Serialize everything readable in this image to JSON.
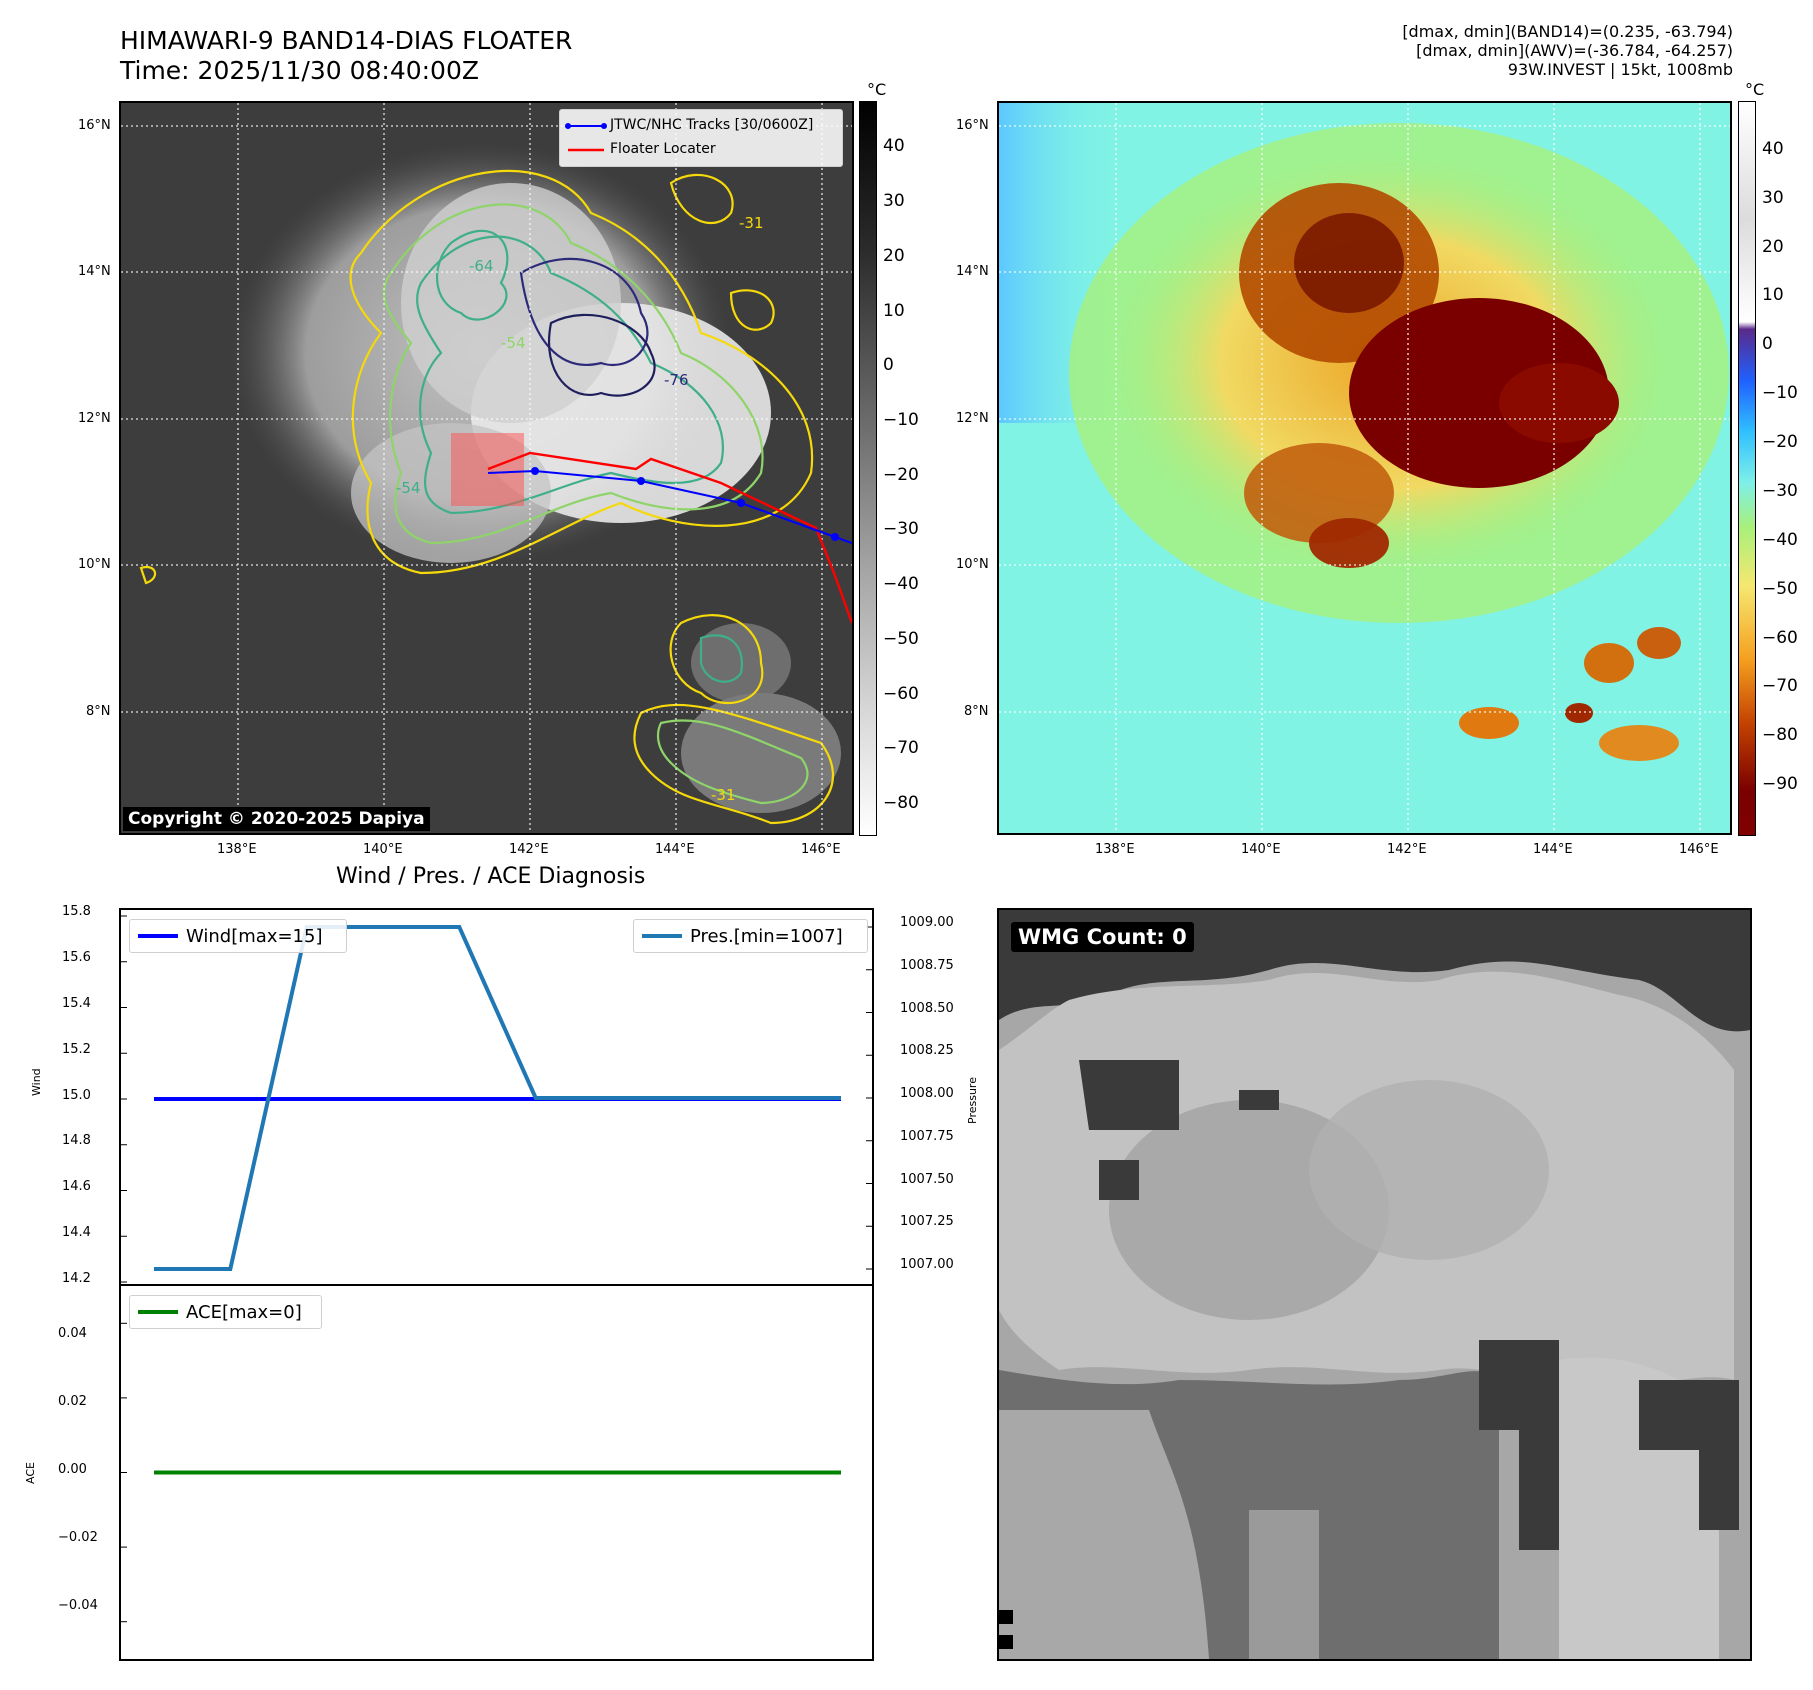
{
  "header": {
    "title_line1": "HIMAWARI-9 BAND14-DIAS FLOATER",
    "title_line2": "Time: 2025/11/30 08:40:00Z",
    "info_line1": "[dmax, dmin](BAND14)=(0.235, -63.794)",
    "info_line2": "[dmax, dmin](AWV)=(-36.784, -64.257)",
    "info_line3": "93W.INVEST | 15kt, 1008mb"
  },
  "ir_map": {
    "lat_labels": [
      "16°N",
      "14°N",
      "12°N",
      "10°N",
      "8°N"
    ],
    "lon_labels": [
      "138°E",
      "140°E",
      "142°E",
      "144°E",
      "146°E"
    ],
    "legend": {
      "track": "JTWC/NHC Tracks [30/0600Z]",
      "locater": "Floater Locater"
    },
    "contour_labels": [
      "-31",
      "-54",
      "-64",
      "-76"
    ],
    "copyright": "Copyright © 2020-2025 Dapiya",
    "colorbar": {
      "unit": "°C",
      "ticks": [
        "40",
        "30",
        "20",
        "10",
        "0",
        "−10",
        "−20",
        "−30",
        "−40",
        "−50",
        "−60",
        "−70",
        "−80"
      ]
    },
    "colors": {
      "track": "#0000ff",
      "locater": "#ff0000",
      "contour_warm": "#f5d90a",
      "contour_mid": "#3fae8a",
      "contour_cold": "#2e2a7a"
    }
  },
  "color_map": {
    "lat_labels": [
      "16°N",
      "14°N",
      "12°N",
      "10°N",
      "8°N"
    ],
    "lon_labels": [
      "138°E",
      "140°E",
      "142°E",
      "144°E",
      "146°E"
    ],
    "colorbar": {
      "unit": "°C",
      "ticks": [
        "40",
        "30",
        "20",
        "10",
        "0",
        "−10",
        "−20",
        "−30",
        "−40",
        "−50",
        "−60",
        "−70",
        "−80",
        "−90"
      ]
    },
    "colors": {
      "background": "#7ff0e8",
      "warm_cloud": "#f5c542",
      "cold_core": "#7a0000"
    }
  },
  "diagnosis": {
    "title": "Wind / Pres. / ACE Diagnosis",
    "wind_axis_label": "Wind",
    "pressure_axis_label": "Pressure",
    "ace_axis_label": "ACE",
    "wind_ticks": [
      "15.8",
      "15.6",
      "15.4",
      "15.2",
      "15.0",
      "14.8",
      "14.6",
      "14.4",
      "14.2"
    ],
    "pressure_ticks": [
      "1009.00",
      "1008.75",
      "1008.50",
      "1008.25",
      "1008.00",
      "1007.75",
      "1007.50",
      "1007.25",
      "1007.00"
    ],
    "ace_ticks": [
      "0.04",
      "0.02",
      "0.00",
      "−0.02",
      "−0.04"
    ],
    "legend_wind": "Wind[max=15]",
    "legend_pres": "Pres.[min=1007]",
    "legend_ace": "ACE[max=0]",
    "colors": {
      "wind": "#0000ff",
      "pressure": "#1f77b4",
      "ace": "#008000"
    }
  },
  "chart_data": [
    {
      "type": "line",
      "title": "Wind / Pres. / ACE Diagnosis",
      "x": [
        0,
        1,
        2,
        3,
        4,
        5,
        6,
        7,
        8,
        9
      ],
      "series": [
        {
          "name": "Wind[max=15]",
          "axis": "left",
          "values": [
            15,
            15,
            15,
            15,
            15,
            15,
            15,
            15,
            15,
            15
          ]
        },
        {
          "name": "Pres.[min=1007]",
          "axis": "right",
          "values": [
            1007,
            1007,
            1009,
            1009,
            1009,
            1008,
            1008,
            1008,
            1008,
            1008
          ]
        }
      ],
      "ylabel": "Wind",
      "ylim": [
        14.2,
        15.8
      ],
      "y2label": "Pressure",
      "y2lim": [
        1007,
        1009
      ]
    },
    {
      "type": "line",
      "x": [
        0,
        1,
        2,
        3,
        4,
        5,
        6,
        7,
        8,
        9
      ],
      "series": [
        {
          "name": "ACE[max=0]",
          "values": [
            0,
            0,
            0,
            0,
            0,
            0,
            0,
            0,
            0,
            0
          ]
        }
      ],
      "ylabel": "ACE",
      "ylim": [
        -0.05,
        0.05
      ]
    }
  ],
  "wmg": {
    "label": "WMG Count: 0"
  }
}
